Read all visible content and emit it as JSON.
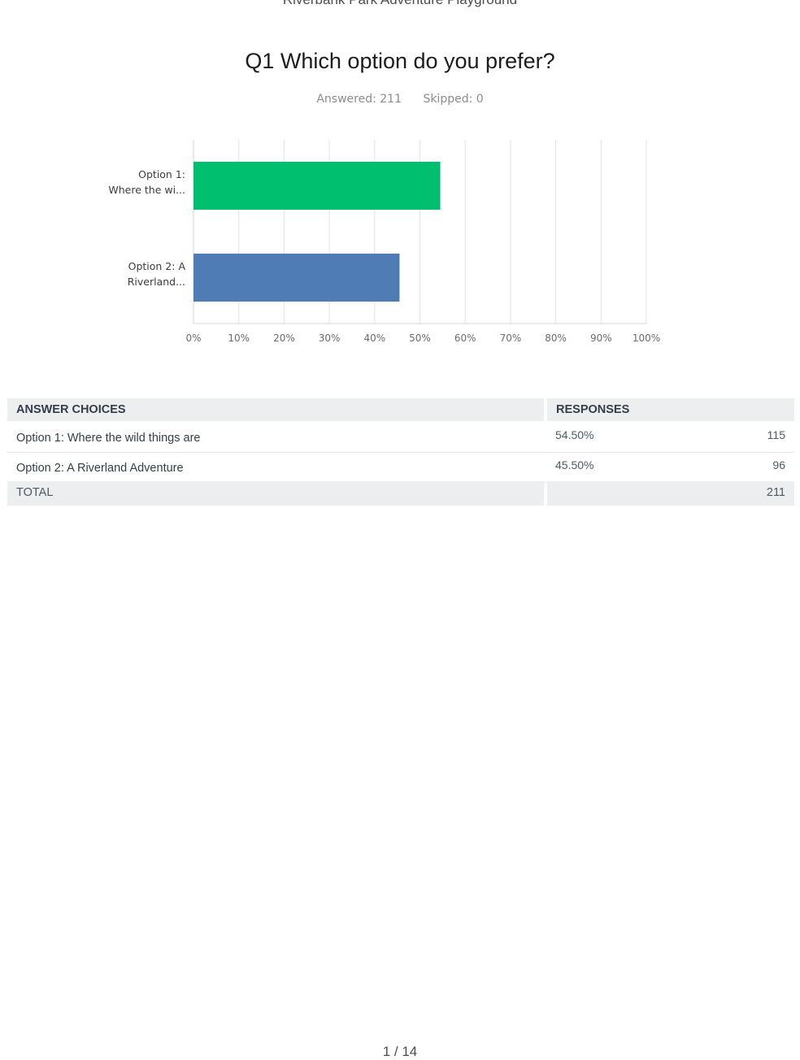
{
  "page": {
    "header_text": "Riverbank Park Adventure Playground",
    "footer_text": "1 / 14"
  },
  "question": {
    "title": "Q1 Which option do you prefer?",
    "answered": "Answered: 211",
    "skipped": "Skipped: 0"
  },
  "chart_data": {
    "type": "bar",
    "orientation": "horizontal",
    "categories": [
      [
        "Option 1:",
        "Where the wi..."
      ],
      [
        "Option 2: A",
        "Riverland..."
      ]
    ],
    "values": [
      54.5,
      45.5
    ],
    "colors": [
      "#00bf6f",
      "#507cb6"
    ],
    "xlim": [
      0,
      100
    ],
    "x_ticks": [
      "0%",
      "10%",
      "20%",
      "30%",
      "40%",
      "50%",
      "60%",
      "70%",
      "80%",
      "90%",
      "100%"
    ],
    "grid": true,
    "title": "",
    "xlabel": "",
    "ylabel": ""
  },
  "table": {
    "headers": [
      "ANSWER CHOICES",
      "RESPONSES"
    ],
    "rows": [
      {
        "choice": "Option 1: Where the wild things are",
        "percent": "54.50%",
        "count": "115"
      },
      {
        "choice": "Option 2: A Riverland Adventure",
        "percent": "45.50%",
        "count": "96"
      }
    ],
    "total_label": "TOTAL",
    "total_count": "211"
  }
}
